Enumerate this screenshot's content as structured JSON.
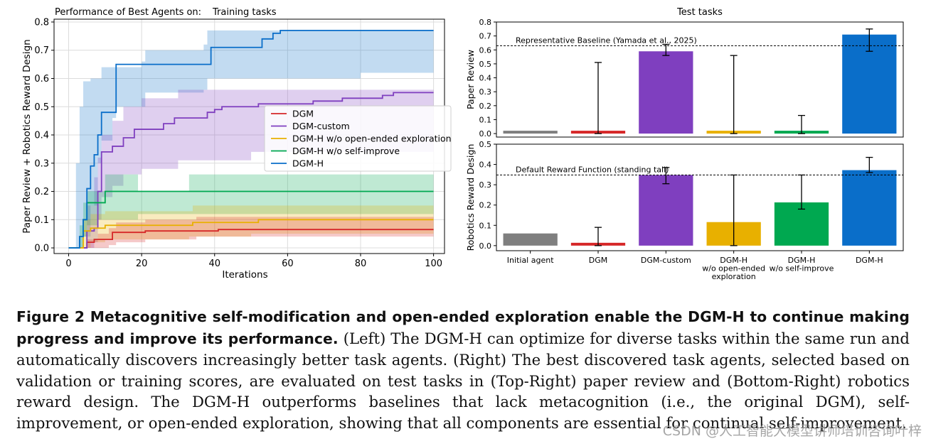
{
  "colors": {
    "DGM": "#d62728",
    "DGM-custom": "#7f3fbf",
    "DGM-H w/o open-ended exploration": "#e8b000",
    "DGM-H w/o self-improve": "#00a850",
    "DGM-H": "#0a6ec9",
    "Initial agent": "#7f7f7f"
  },
  "chart_data": [
    {
      "type": "line",
      "title_prefix": "Performance of Best Agents on:",
      "title": "Training tasks",
      "xlabel": "Iterations",
      "ylabel": "Paper Review + Robotics Reward Design",
      "xlim": [
        -4,
        103
      ],
      "ylim": [
        -0.02,
        0.81
      ],
      "xticks": [
        "0",
        "20",
        "40",
        "60",
        "80",
        "100"
      ],
      "yticks": [
        "0.0",
        "0.1",
        "0.2",
        "0.3",
        "0.4",
        "0.5",
        "0.6",
        "0.7",
        "0.8"
      ],
      "grid": true,
      "legend_position": "center-right",
      "series": [
        {
          "name": "DGM",
          "step": [
            [
              0,
              0
            ],
            [
              4,
              0
            ],
            [
              5,
              0.02
            ],
            [
              7,
              0.03
            ],
            [
              12,
              0.055
            ],
            [
              20,
              0.055
            ],
            [
              21,
              0.06
            ],
            [
              40,
              0.06
            ],
            [
              41,
              0.065
            ],
            [
              100,
              0.065
            ]
          ],
          "band": [
            [
              0,
              0,
              0
            ],
            [
              4,
              0,
              0
            ],
            [
              5,
              0,
              0.03
            ],
            [
              8,
              0,
              0.05
            ],
            [
              11,
              0.01,
              0.07
            ],
            [
              13,
              0.02,
              0.09
            ],
            [
              20,
              0.02,
              0.09
            ],
            [
              21,
              0.03,
              0.1
            ],
            [
              33,
              0.03,
              0.1
            ],
            [
              35,
              0.04,
              0.11
            ],
            [
              100,
              0.04,
              0.11
            ]
          ]
        },
        {
          "name": "DGM-custom",
          "step": [
            [
              0,
              0
            ],
            [
              4,
              0
            ],
            [
              5,
              0.06
            ],
            [
              7,
              0.07
            ],
            [
              8,
              0.2
            ],
            [
              9,
              0.34
            ],
            [
              12,
              0.36
            ],
            [
              15,
              0.39
            ],
            [
              18,
              0.42
            ],
            [
              26,
              0.44
            ],
            [
              29,
              0.46
            ],
            [
              38,
              0.48
            ],
            [
              40,
              0.49
            ],
            [
              42,
              0.5
            ],
            [
              51,
              0.5
            ],
            [
              52,
              0.51
            ],
            [
              67,
              0.52
            ],
            [
              75,
              0.53
            ],
            [
              86,
              0.54
            ],
            [
              89,
              0.55
            ],
            [
              100,
              0.55
            ]
          ],
          "band": [
            [
              0,
              0,
              0
            ],
            [
              4,
              0,
              0
            ],
            [
              5,
              0,
              0.15
            ],
            [
              7,
              0.02,
              0.25
            ],
            [
              8,
              0.1,
              0.32
            ],
            [
              9,
              0.18,
              0.4
            ],
            [
              12,
              0.22,
              0.45
            ],
            [
              15,
              0.26,
              0.5
            ],
            [
              20,
              0.28,
              0.53
            ],
            [
              30,
              0.31,
              0.56
            ],
            [
              50,
              0.34,
              0.56
            ],
            [
              100,
              0.34,
              0.57
            ]
          ]
        },
        {
          "name": "DGM-H w/o open-ended exploration",
          "step": [
            [
              0,
              0
            ],
            [
              3,
              0
            ],
            [
              4,
              0.06
            ],
            [
              6,
              0.07
            ],
            [
              10,
              0.08
            ],
            [
              33,
              0.08
            ],
            [
              34,
              0.09
            ],
            [
              50,
              0.09
            ],
            [
              52,
              0.1
            ],
            [
              100,
              0.1
            ]
          ],
          "band": [
            [
              0,
              0,
              0
            ],
            [
              3,
              0,
              0
            ],
            [
              4,
              0,
              0.1
            ],
            [
              6,
              0.02,
              0.12
            ],
            [
              10,
              0.03,
              0.13
            ],
            [
              33,
              0.04,
              0.13
            ],
            [
              34,
              0.04,
              0.15
            ],
            [
              50,
              0.05,
              0.15
            ],
            [
              100,
              0.05,
              0.15
            ]
          ]
        },
        {
          "name": "DGM-H w/o self-improve",
          "step": [
            [
              0,
              0
            ],
            [
              2,
              0
            ],
            [
              3,
              0.04
            ],
            [
              4,
              0.1
            ],
            [
              5,
              0.16
            ],
            [
              9,
              0.16
            ],
            [
              10,
              0.2
            ],
            [
              100,
              0.2
            ]
          ],
          "band": [
            [
              0,
              0,
              0
            ],
            [
              2,
              0,
              0
            ],
            [
              3,
              0,
              0.08
            ],
            [
              4,
              0.04,
              0.16
            ],
            [
              5,
              0.08,
              0.2
            ],
            [
              8,
              0.1,
              0.2
            ],
            [
              10,
              0.1,
              0.26
            ],
            [
              19,
              0.12,
              0.2
            ],
            [
              33,
              0.12,
              0.26
            ],
            [
              100,
              0.12,
              0.26
            ]
          ]
        },
        {
          "name": "DGM-H",
          "step": [
            [
              0,
              0
            ],
            [
              2,
              0
            ],
            [
              3,
              0.04
            ],
            [
              4,
              0.1
            ],
            [
              5,
              0.21
            ],
            [
              6,
              0.29
            ],
            [
              7,
              0.33
            ],
            [
              8,
              0.4
            ],
            [
              9,
              0.48
            ],
            [
              13,
              0.65
            ],
            [
              38,
              0.65
            ],
            [
              39,
              0.71
            ],
            [
              52,
              0.71
            ],
            [
              53,
              0.74
            ],
            [
              56,
              0.76
            ],
            [
              58,
              0.77
            ],
            [
              100,
              0.77
            ]
          ],
          "band": [
            [
              0,
              0,
              0
            ],
            [
              2,
              0,
              0.3
            ],
            [
              3,
              0,
              0.5
            ],
            [
              4,
              0.04,
              0.59
            ],
            [
              6,
              0.15,
              0.6
            ],
            [
              8,
              0.3,
              0.6
            ],
            [
              9,
              0.38,
              0.64
            ],
            [
              12,
              0.46,
              0.64
            ],
            [
              13,
              0.5,
              0.64
            ],
            [
              20,
              0.5,
              0.66
            ],
            [
              21,
              0.55,
              0.7
            ],
            [
              37,
              0.56,
              0.72
            ],
            [
              38,
              0.6,
              0.77
            ],
            [
              56,
              0.6,
              0.77
            ],
            [
              80,
              0.62,
              0.77
            ],
            [
              100,
              0.62,
              0.77
            ]
          ]
        }
      ]
    },
    {
      "type": "bar",
      "title": "Test tasks",
      "ylabel": "Paper Review",
      "ylim": [
        -0.025,
        0.8
      ],
      "yticks": [
        "0.0",
        "0.1",
        "0.2",
        "0.3",
        "0.4",
        "0.5",
        "0.6",
        "0.7",
        "0.8"
      ],
      "categories": [
        "Initial agent",
        "DGM",
        "DGM-custom",
        "DGM-H w/o open-ended exploration",
        "DGM-H w/o self-improve",
        "DGM-H"
      ],
      "values": [
        0.0,
        0.0,
        0.59,
        0.0,
        0.0,
        0.71
      ],
      "errors": [
        null,
        [
          0.0,
          0.51
        ],
        [
          0.56,
          0.64
        ],
        [
          0.0,
          0.56
        ],
        [
          0.0,
          0.13
        ],
        [
          0.59,
          0.75
        ]
      ],
      "baseline": {
        "value": 0.63,
        "label": "Representative Baseline (Yamada et al., 2025)"
      }
    },
    {
      "type": "bar",
      "ylabel": "Robotics Reward Design",
      "ylim": [
        -0.025,
        0.5
      ],
      "yticks": [
        "0.0",
        "0.1",
        "0.2",
        "0.3",
        "0.4",
        "0.5"
      ],
      "categories": [
        "Initial agent",
        "DGM",
        "DGM-custom",
        "DGM-H w/o open-ended exploration",
        "DGM-H w/o self-improve",
        "DGM-H"
      ],
      "tick_labels": [
        [
          "Initial agent"
        ],
        [
          "DGM"
        ],
        [
          "DGM-custom"
        ],
        [
          "DGM-H",
          "w/o open-ended",
          "exploration"
        ],
        [
          "DGM-H",
          "w/o self-improve"
        ],
        [
          "DGM-H"
        ]
      ],
      "values": [
        0.06,
        0.0,
        0.348,
        0.116,
        0.213,
        0.372
      ],
      "errors": [
        null,
        [
          0.0,
          0.09
        ],
        [
          0.305,
          0.385
        ],
        [
          0.0,
          0.348
        ],
        [
          0.18,
          0.348
        ],
        [
          0.36,
          0.435
        ]
      ],
      "baseline": {
        "value": 0.348,
        "label": "Default Reward Function (standing tall)"
      }
    }
  ],
  "caption": {
    "lead": "Figure 2  Metacognitive self-modification and open-ended exploration enable the DGM-H to continue making progress and improve its performance.",
    "body": " (Left) The DGM-H can optimize for diverse tasks within the same run and automatically discovers increasingly better task agents. (Right) The best discovered task agents, selected based on validation or training scores, are evaluated on test tasks in (Top-Right) paper review and (Bottom-Right) robotics reward design. The DGM-H outperforms baselines that lack metacognition (i.e., the original DGM), self-improvement, or open-ended exploration, showing that all components are essential for continual self-improvement."
  },
  "watermark": "CSDN @人工智能大模型讲师培训咨询叶梓"
}
